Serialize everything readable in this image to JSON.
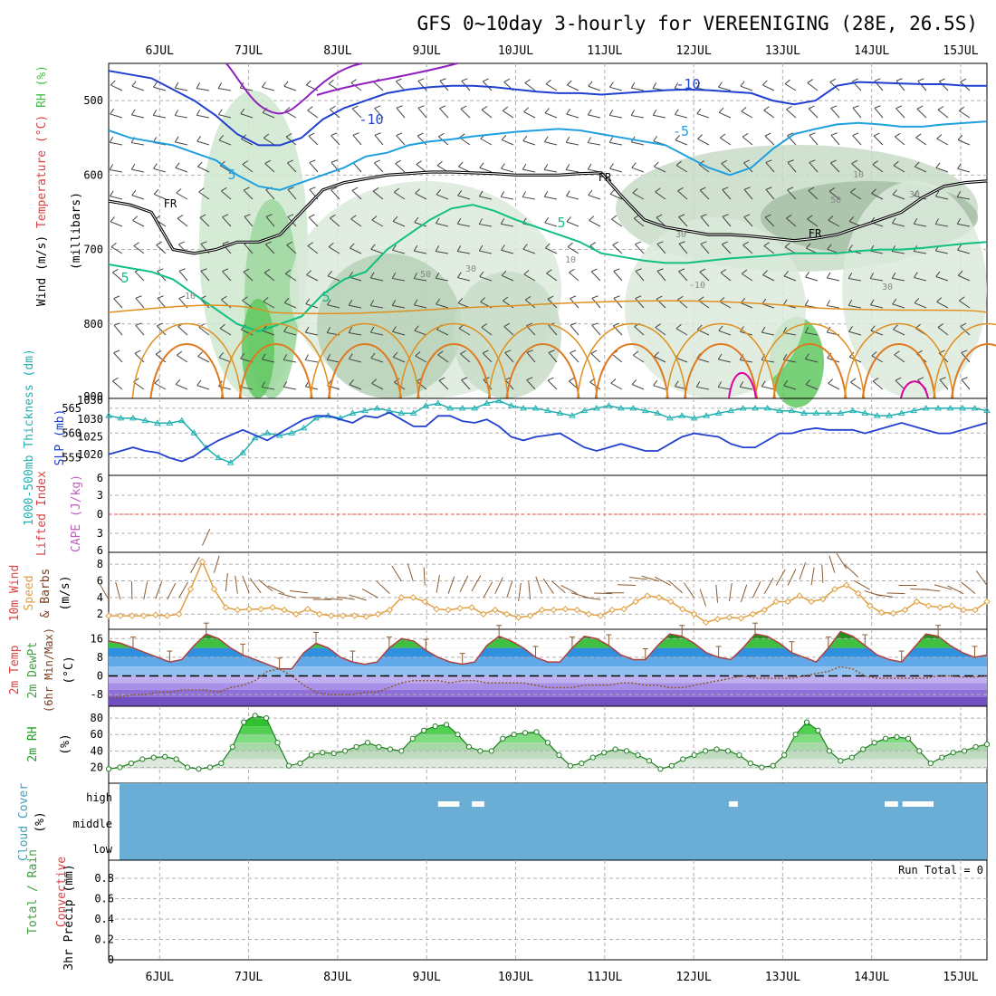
{
  "title": "GFS 0~10day 3-hourly for VEREENIGING (28E, 26.5S)",
  "dates": [
    "6JUL",
    "7JUL",
    "8JUL",
    "9JUL",
    "10JUL",
    "11JUL",
    "12JUL",
    "13JUL",
    "14JUL",
    "15JUL"
  ],
  "colors": {
    "grid": "#b0b0b0",
    "temp_blue": "#2040d0",
    "temp_cyan": "#20a0e0",
    "temp_green": "#10c080",
    "temp_orange": "#e09020",
    "temp_magenta": "#e000a0",
    "thickness": "#20b0b0",
    "slp": "#2040d0",
    "wind10": "#e0a040",
    "temp2m": "#e04040",
    "cloud": "#6aaed6"
  },
  "chart_data": [
    {
      "type": "contour",
      "panel": "upper-air",
      "ylabel_parts": [
        {
          "text": "Wind (m/s)",
          "color": "#000000"
        },
        {
          "text": "Temperature (°C)",
          "color": "#e04040"
        },
        {
          "text": "RH (%)",
          "color": "#40c040"
        }
      ],
      "ylabel2": "(millibars)",
      "yticks": [
        500,
        600,
        700,
        800,
        900
      ],
      "ylim": [
        450,
        900
      ],
      "contour_labels": [
        "-10",
        "-10",
        "-5",
        "5",
        "5",
        "5",
        "5",
        "FR",
        "FR",
        "FR",
        "10",
        "30",
        "30",
        "50",
        "30",
        "10",
        "-10",
        "10",
        "50",
        "30"
      ],
      "isotherm_minus10_mb": [
        460,
        465,
        470,
        485,
        500,
        520,
        545,
        560,
        560,
        550,
        525,
        510,
        500,
        490,
        485,
        482,
        480,
        480,
        482,
        485,
        488,
        490,
        490,
        492,
        490,
        488,
        486,
        485,
        486,
        488,
        490,
        500,
        505,
        500,
        480,
        475,
        476,
        477,
        478,
        478,
        480,
        480
      ],
      "isotherm_minus5_mb": [
        540,
        550,
        555,
        560,
        570,
        580,
        600,
        615,
        620,
        610,
        600,
        590,
        575,
        570,
        560,
        555,
        552,
        548,
        545,
        542,
        540,
        538,
        540,
        545,
        550,
        555,
        560,
        575,
        590,
        600,
        590,
        565,
        545,
        538,
        532,
        530,
        532,
        535,
        535,
        532,
        530,
        528
      ],
      "freezing_level_mb": [
        635,
        640,
        650,
        700,
        705,
        700,
        690,
        690,
        680,
        650,
        620,
        610,
        605,
        600,
        598,
        596,
        596,
        597,
        598,
        600,
        600,
        600,
        598,
        597,
        630,
        660,
        670,
        675,
        680,
        680,
        682,
        685,
        688,
        685,
        680,
        670,
        660,
        650,
        630,
        615,
        610,
        608
      ],
      "isotherm_5_mb": [
        720,
        725,
        730,
        740,
        760,
        780,
        800,
        810,
        800,
        790,
        760,
        740,
        730,
        700,
        680,
        660,
        645,
        640,
        648,
        660,
        670,
        680,
        690,
        705,
        710,
        715,
        718,
        718,
        715,
        712,
        710,
        708,
        705,
        705,
        705,
        702,
        700,
        700,
        698,
        695,
        692,
        690
      ]
    },
    {
      "type": "line",
      "panel": "thickness-slp",
      "ylabel_parts": [
        {
          "text": "1000-500mb Thickness (dm)",
          "color": "#20b0b0"
        },
        {
          "text": "SLP (mb)",
          "color": "#2040d0"
        }
      ],
      "yticks_left": [
        555,
        560,
        565
      ],
      "yticks_right": [
        1020,
        1025,
        1030
      ],
      "series": [
        {
          "name": "Thickness",
          "values": [
            563.5,
            563,
            563,
            562.5,
            562,
            562,
            562.5,
            560,
            557,
            555,
            554,
            556,
            559,
            560,
            559.5,
            560,
            561,
            563,
            563.5,
            563,
            564,
            564.5,
            565,
            564.5,
            564,
            564,
            565.5,
            566,
            565,
            565,
            565,
            566,
            566.5,
            565.5,
            565,
            565,
            564.5,
            564,
            563.5,
            564.5,
            565,
            565.5,
            565,
            565,
            564.5,
            564,
            563,
            563.5,
            563,
            563.5,
            564,
            564.5,
            565,
            565,
            565,
            564.5,
            564.5,
            564,
            564,
            564,
            564,
            564.5,
            564,
            563.5,
            563.5,
            564,
            564.5,
            565,
            565,
            565,
            565,
            565,
            564.5
          ]
        },
        {
          "name": "SLP",
          "values": [
            1020,
            1021,
            1022,
            1021,
            1020.5,
            1019,
            1018,
            1019.5,
            1022,
            1024,
            1025.5,
            1027,
            1025.5,
            1024,
            1026,
            1028,
            1030,
            1031,
            1031,
            1030,
            1029,
            1031,
            1030.5,
            1032,
            1030,
            1028,
            1028,
            1031,
            1031,
            1029.5,
            1029,
            1030,
            1028,
            1025,
            1024,
            1025,
            1025.5,
            1026,
            1024,
            1022,
            1021,
            1022,
            1023,
            1022,
            1021,
            1021,
            1023,
            1025,
            1026,
            1025.5,
            1025,
            1023,
            1022,
            1022,
            1024,
            1026,
            1026,
            1027,
            1027.5,
            1027,
            1027,
            1027,
            1026,
            1027,
            1028,
            1029,
            1028,
            1027,
            1026,
            1026,
            1027,
            1028,
            1029
          ]
        }
      ]
    },
    {
      "type": "line",
      "panel": "stability",
      "ylabel_parts": [
        {
          "text": "Lifted Index",
          "color": "#e04040"
        },
        {
          "text": "CAPE (J/kg)",
          "color": "#c060c0"
        }
      ],
      "yticks": [
        "6",
        "3",
        "0",
        "3",
        "6"
      ],
      "series": [
        {
          "name": "Lifted Index",
          "values": []
        },
        {
          "name": "CAPE",
          "values": []
        }
      ]
    },
    {
      "type": "line",
      "panel": "wind10m",
      "ylabel_parts": [
        {
          "text": "10m Wind",
          "color": "#e04040"
        },
        {
          "text": "Speed",
          "color": "#e0a040"
        },
        {
          "text": "& Barbs",
          "color": "#804020"
        },
        {
          "text": "(m/s)",
          "color": "#000000"
        }
      ],
      "yticks": [
        2,
        4,
        6,
        8
      ],
      "series": [
        {
          "name": "Speed",
          "values": [
            1.8,
            1.8,
            1.8,
            1.8,
            1.9,
            1.8,
            2.0,
            5.0,
            8.3,
            5.0,
            2.8,
            2.5,
            2.6,
            2.6,
            2.8,
            2.5,
            2.0,
            2.6,
            2.0,
            1.8,
            1.8,
            1.8,
            1.7,
            2.0,
            2.5,
            4.0,
            4.0,
            3.5,
            2.6,
            2.5,
            2.7,
            2.8,
            2.0,
            2.5,
            2.0,
            1.6,
            1.8,
            2.5,
            2.5,
            2.6,
            2.5,
            2.0,
            1.8,
            2.5,
            2.6,
            3.5,
            4.2,
            4.0,
            3.5,
            2.6,
            2.0,
            1.0,
            1.4,
            1.6,
            1.5,
            2.0,
            2.5,
            3.5,
            3.5,
            4.2,
            3.5,
            3.8,
            5.0,
            5.5,
            4.5,
            3.0,
            2.2,
            2.1,
            2.5,
            3.5,
            3.0,
            2.8,
            3.0,
            2.5,
            2.5,
            3.5
          ]
        }
      ]
    },
    {
      "type": "area",
      "panel": "temperature",
      "ylabel_parts": [
        {
          "text": "2m Temp",
          "color": "#e04040"
        },
        {
          "text": "2m DewPt",
          "color": "#40a040"
        },
        {
          "text": "(6hr Min/Max)",
          "color": "#804020"
        },
        {
          "text": "(°C)",
          "color": "#000000"
        }
      ],
      "yticks": [
        -8,
        0,
        8,
        16
      ],
      "series": [
        {
          "name": "Temp",
          "values": [
            15,
            14,
            12,
            10,
            8,
            6,
            7,
            13,
            18,
            16,
            12,
            9,
            7,
            5,
            3,
            3,
            10,
            14,
            12,
            8,
            6,
            5,
            6,
            12,
            16,
            15,
            11,
            8,
            6,
            5,
            6,
            13,
            17,
            15,
            12,
            8,
            6,
            6,
            12,
            17,
            16,
            13,
            9,
            7,
            7,
            13,
            18,
            17,
            14,
            10,
            8,
            7,
            12,
            18,
            17,
            14,
            10,
            8,
            6,
            12,
            19,
            17,
            13,
            9,
            7,
            6,
            12,
            18,
            17,
            13,
            10,
            8,
            9
          ]
        },
        {
          "name": "DewPt",
          "values": [
            -9,
            -9,
            -8,
            -8,
            -7,
            -7,
            -6,
            -6,
            -6,
            -7,
            -5,
            -4,
            -2,
            2,
            3,
            0,
            -4,
            -7,
            -8,
            -8,
            -8,
            -7,
            -7,
            -5,
            -3,
            -2,
            -2,
            -2,
            -3,
            -2,
            -2,
            -3,
            -3,
            -3,
            -3,
            -4,
            -5,
            -5,
            -5,
            -4,
            -4,
            -4,
            -3,
            -3,
            -4,
            -4,
            -5,
            -5,
            -4,
            -3,
            -2,
            -1,
            0,
            -1,
            -1,
            -1,
            -1,
            0,
            1,
            2,
            4,
            3,
            0,
            -1,
            -1,
            -1,
            -1,
            -1,
            0,
            0,
            -0.5,
            -0.5,
            0
          ]
        }
      ]
    },
    {
      "type": "area",
      "panel": "rh2m",
      "ylabel_parts": [
        {
          "text": "2m RH",
          "color": "#20a020"
        },
        {
          "text": "(%)",
          "color": "#000000"
        }
      ],
      "yticks": [
        20,
        40,
        60,
        80
      ],
      "series": [
        {
          "name": "RH",
          "values": [
            18,
            20,
            25,
            30,
            32,
            33,
            30,
            20,
            18,
            20,
            25,
            45,
            75,
            83,
            80,
            50,
            22,
            25,
            35,
            38,
            37,
            40,
            45,
            50,
            45,
            42,
            40,
            55,
            65,
            70,
            72,
            60,
            45,
            40,
            40,
            55,
            60,
            62,
            63,
            50,
            35,
            22,
            25,
            32,
            38,
            42,
            40,
            35,
            28,
            18,
            22,
            30,
            35,
            40,
            42,
            40,
            35,
            25,
            20,
            22,
            35,
            60,
            75,
            65,
            40,
            28,
            32,
            42,
            50,
            55,
            57,
            55,
            40,
            25,
            32,
            38,
            40,
            45,
            48
          ]
        }
      ]
    },
    {
      "type": "heatmap",
      "panel": "cloud-cover",
      "ylabel_parts": [
        {
          "text": "Cloud Cover",
          "color": "#40a0c0"
        },
        {
          "text": "(%)",
          "color": "#000000"
        }
      ],
      "ylabels": [
        "high",
        "middle",
        "low"
      ],
      "gaps_high": [
        [
          3.58,
          3.82
        ],
        [
          3.96,
          4.1
        ],
        [
          6.85,
          6.95
        ],
        [
          8.6,
          8.75
        ],
        [
          8.8,
          9.15
        ]
      ]
    },
    {
      "type": "bar",
      "panel": "precip",
      "ylabel_parts": [
        {
          "text": "Total / Rain",
          "color": "#40a040"
        },
        {
          "text": "Convective",
          "color": "#e04040"
        },
        {
          "text": "3hr Precip (mm)",
          "color": "#000000"
        }
      ],
      "yticks": [
        "0",
        "0.2",
        "0.4",
        "0.6",
        "0.8"
      ],
      "annotation": "Run Total = 0",
      "values": []
    }
  ]
}
